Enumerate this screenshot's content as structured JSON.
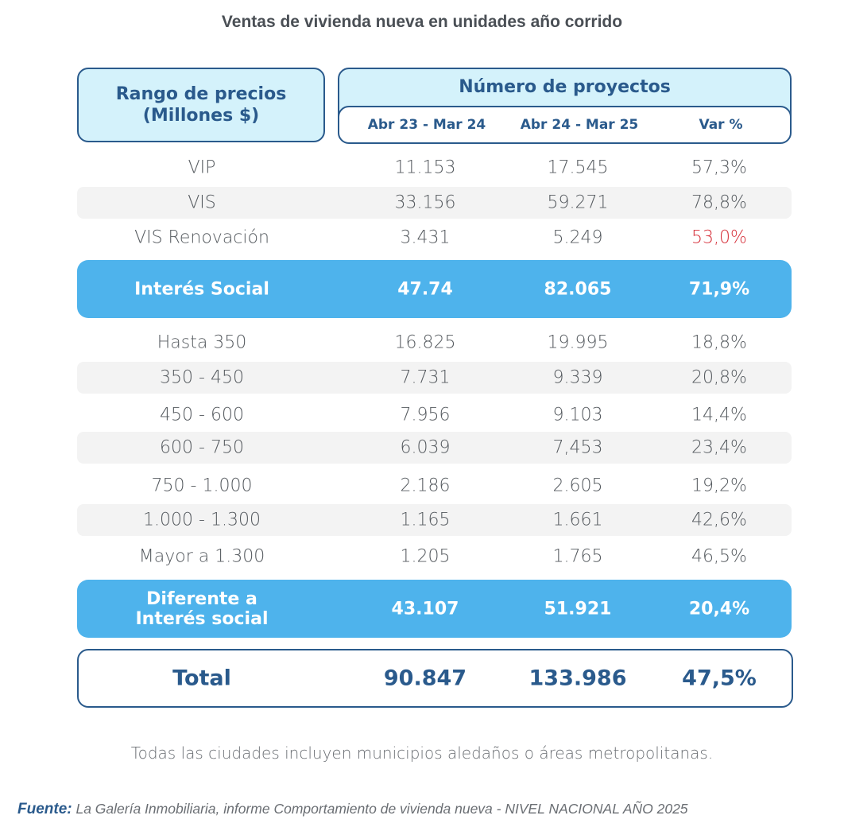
{
  "title": "Ventas de vivienda nueva en unidades año corrido",
  "header": {
    "left_line1": "Rango de precios",
    "left_line2": "(Millones $)",
    "right_title": "Número de proyectos",
    "col1": "Abr 23 - Mar 24",
    "col2": "Abr 24 - Mar 25",
    "col3": "Var %"
  },
  "rows": [
    {
      "label": "VIP",
      "v1": "11.153",
      "v2": "17.545",
      "var": "57,3%"
    },
    {
      "label": "VIS",
      "v1": "33.156",
      "v2": "59.271",
      "var": "78,8%"
    },
    {
      "label": "VIS Renovación",
      "v1": "3.431",
      "v2": "5.249",
      "var": "53,0%"
    },
    {
      "label": "Hasta 350",
      "v1": "16.825",
      "v2": "19.995",
      "var": "18,8%"
    },
    {
      "label": "350 - 450",
      "v1": "7.731",
      "v2": "9.339",
      "var": "20,8%"
    },
    {
      "label": "450 - 600",
      "v1": "7.956",
      "v2": "9.103",
      "var": "14,4%"
    },
    {
      "label": "600 - 750",
      "v1": "6.039",
      "v2": "7,453",
      "var": "23,4%"
    },
    {
      "label": "750 - 1.000",
      "v1": "2.186",
      "v2": "2.605",
      "var": "19,2%"
    },
    {
      "label": "1.000 - 1.300",
      "v1": "1.165",
      "v2": "1.661",
      "var": "42,6%"
    },
    {
      "label": "Mayor a 1.300",
      "v1": "1.205",
      "v2": "1.765",
      "var": "46,5%"
    }
  ],
  "subtotals": {
    "interes_social": {
      "label": "Interés Social",
      "v1": "47.74",
      "v2": "82.065",
      "var": "71,9%"
    },
    "diferente": {
      "label_line1": "Diferente a",
      "label_line2": "Interés social",
      "v1": "43.107",
      "v2": "51.921",
      "var": "20,4%"
    }
  },
  "total": {
    "label": "Total",
    "v1": "90.847",
    "v2": "133.986",
    "var": "47,5%"
  },
  "note": "Todas las ciudades incluyen municipios aledaños o áreas metropolitanas.",
  "source": {
    "label": "Fuente:",
    "text": "La Galería Inmobiliaria, informe Comportamiento de vivienda nueva - NIVEL NACIONAL AÑO 2025"
  },
  "colors": {
    "accent_dark": "#2a5a8c",
    "header_fill": "#d4f2fb",
    "band_fill": "#4eb3ec",
    "negative": "#d6303a"
  }
}
